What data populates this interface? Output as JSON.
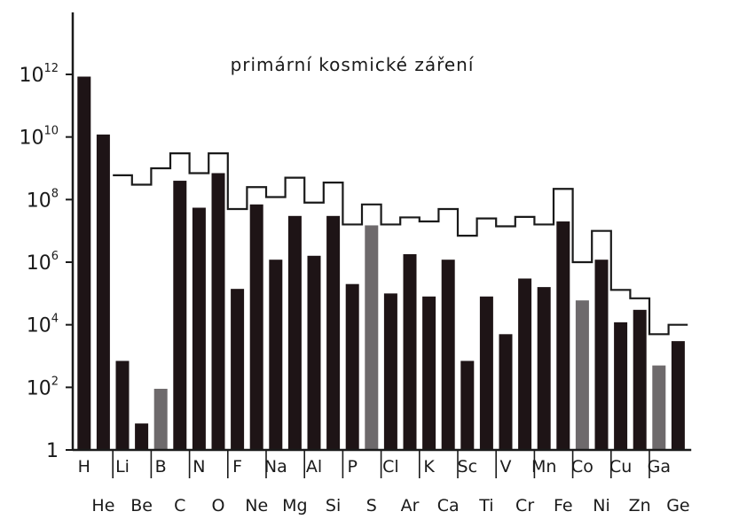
{
  "chart_data": {
    "type": "bar",
    "title": "primární kosmické záření",
    "xlabel": "",
    "ylabel": "",
    "yscale": "log",
    "ylim": [
      1,
      1000000000000.0
    ],
    "y_ticks": [
      {
        "value": 1,
        "base": "1",
        "exp": ""
      },
      {
        "value": 100,
        "base": "10",
        "exp": "2"
      },
      {
        "value": 10000,
        "base": "10",
        "exp": "4"
      },
      {
        "value": 1000000,
        "base": "10",
        "exp": "6"
      },
      {
        "value": 100000000,
        "base": "10",
        "exp": "8"
      },
      {
        "value": 10000000000,
        "base": "10",
        "exp": "10"
      },
      {
        "value": 1000000000000,
        "base": "10",
        "exp": "12"
      }
    ],
    "categories": [
      "H",
      "He",
      "Li",
      "Be",
      "B",
      "C",
      "N",
      "O",
      "F",
      "Ne",
      "Na",
      "Mg",
      "Al",
      "Si",
      "P",
      "S",
      "Cl",
      "Ar",
      "K",
      "Ca",
      "Sc",
      "Ti",
      "V",
      "Cr",
      "Mn",
      "Fe",
      "Co",
      "Ni",
      "Cu",
      "Zn",
      "Ga",
      "Ge"
    ],
    "series": [
      {
        "values": [
          850000000000.0,
          12000000000.0,
          700,
          7,
          90,
          400000000.0,
          55000000.0,
          700000000.0,
          140000.0,
          70000000.0,
          1200000.0,
          30000000.0,
          1600000.0,
          30000000.0,
          200000.0,
          15000000.0,
          100000.0,
          1800000.0,
          80000.0,
          1200000.0,
          700,
          80000.0,
          5000.0,
          300000.0,
          160000.0,
          20000000.0,
          60000.0,
          1200000.0,
          12000.0,
          30000.0,
          500,
          3000.0
        ]
      },
      {
        "values": [
          null,
          null,
          600000000.0,
          300000000.0,
          1000000000.0,
          3000000000.0,
          700000000.0,
          3000000000.0,
          50000000.0,
          250000000.0,
          120000000.0,
          500000000.0,
          80000000.0,
          350000000.0,
          16000000.0,
          70000000.0,
          16000000.0,
          27000000.0,
          20000000.0,
          50000000.0,
          7000000.0,
          25000000.0,
          14000000.0,
          28000000.0,
          16000000.0,
          220000000.0,
          1000000.0,
          10000000.0,
          130000.0,
          70000.0,
          5000.0,
          10000.0
        ]
      }
    ],
    "colors": {
      "bar": "#1e1416",
      "bar_gray": "#6e6a6c",
      "step_line": "#1a1a1a",
      "axis": "#1a1a1a"
    },
    "gray_bars": [
      "B",
      "S",
      "Co",
      "Ga"
    ],
    "grid": false,
    "legend": "none"
  }
}
